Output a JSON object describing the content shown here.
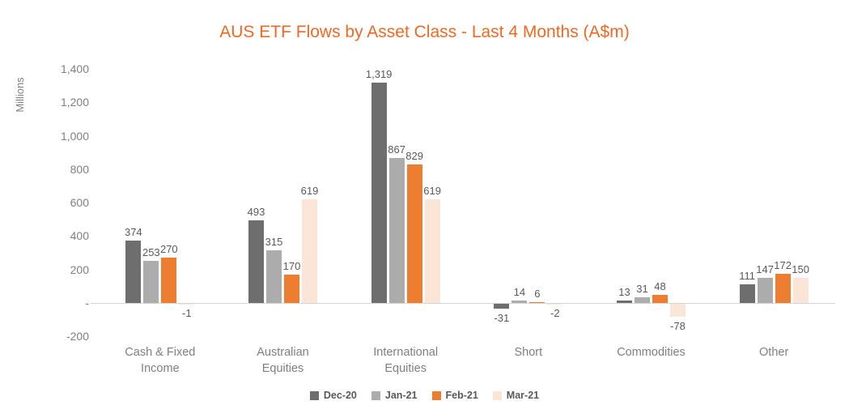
{
  "chart_data": {
    "type": "bar",
    "title": "AUS ETF Flows by Asset Class - Last 4 Months (A$m)",
    "ylabel": "Millions",
    "xlabel": "",
    "categories": [
      "Cash & Fixed Income",
      "Australian Equities",
      "International Equities",
      "Short",
      "Commodities",
      "Other"
    ],
    "series": [
      {
        "name": "Dec-20",
        "color": "#6E6E6E",
        "values": [
          374,
          493,
          1319,
          -31,
          13,
          111
        ]
      },
      {
        "name": "Jan-21",
        "color": "#ACACAC",
        "values": [
          253,
          315,
          867,
          14,
          31,
          147
        ]
      },
      {
        "name": "Feb-21",
        "color": "#ED7D31",
        "values": [
          270,
          170,
          829,
          6,
          48,
          172
        ]
      },
      {
        "name": "Mar-21",
        "color": "#FBE5D6",
        "values": [
          -1,
          619,
          619,
          -2,
          -78,
          150
        ]
      }
    ],
    "ylim": [
      -200,
      1400
    ],
    "y_ticks": [
      {
        "label": "1,400",
        "value": 1400
      },
      {
        "label": "1,200",
        "value": 1200
      },
      {
        "label": "1,000",
        "value": 1000
      },
      {
        "label": "800",
        "value": 800
      },
      {
        "label": "600",
        "value": 600
      },
      {
        "label": "400",
        "value": 400
      },
      {
        "label": "200",
        "value": 200
      },
      {
        "label": "-",
        "value": 0
      },
      {
        "label": "-200",
        "value": -200
      }
    ],
    "grid": false,
    "legend_position": "bottom",
    "colors": {
      "title": "#F26822",
      "axis_text": "#7F7F7F",
      "value_label": "#595959",
      "legend_text": "#595959",
      "axis_line": "#D6D6D6",
      "background": "#FFFFFF"
    }
  }
}
